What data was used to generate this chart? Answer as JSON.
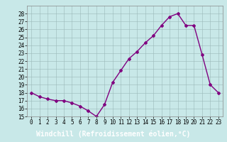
{
  "x": [
    0,
    1,
    2,
    3,
    4,
    5,
    6,
    7,
    8,
    9,
    10,
    11,
    12,
    13,
    14,
    15,
    16,
    17,
    18,
    19,
    20,
    21,
    22,
    23
  ],
  "y": [
    18,
    17.5,
    17.2,
    17,
    17,
    16.7,
    16.3,
    15.7,
    15,
    16.5,
    19.3,
    20.8,
    22.3,
    23.2,
    24.3,
    25.2,
    26.5,
    27.6,
    28,
    26.5,
    26.5,
    22.8,
    19,
    18
  ],
  "line_color": "#800080",
  "marker": "D",
  "marker_size": 2,
  "bg_color": "#c8e8e8",
  "grid_color": "#9ab8b8",
  "xlabel": "Windchill (Refroidissement éolien,°C)",
  "xlabel_fontsize": 7,
  "ylim": [
    15,
    29
  ],
  "xlim": [
    -0.5,
    23.5
  ],
  "yticks": [
    15,
    16,
    17,
    18,
    19,
    20,
    21,
    22,
    23,
    24,
    25,
    26,
    27,
    28
  ],
  "xticks": [
    0,
    1,
    2,
    3,
    4,
    5,
    6,
    7,
    8,
    9,
    10,
    11,
    12,
    13,
    14,
    15,
    16,
    17,
    18,
    19,
    20,
    21,
    22,
    23
  ],
  "tick_fontsize": 5.5,
  "line_width": 1.0,
  "label_bar_color": "#800080",
  "label_text_color": "#ffffff"
}
